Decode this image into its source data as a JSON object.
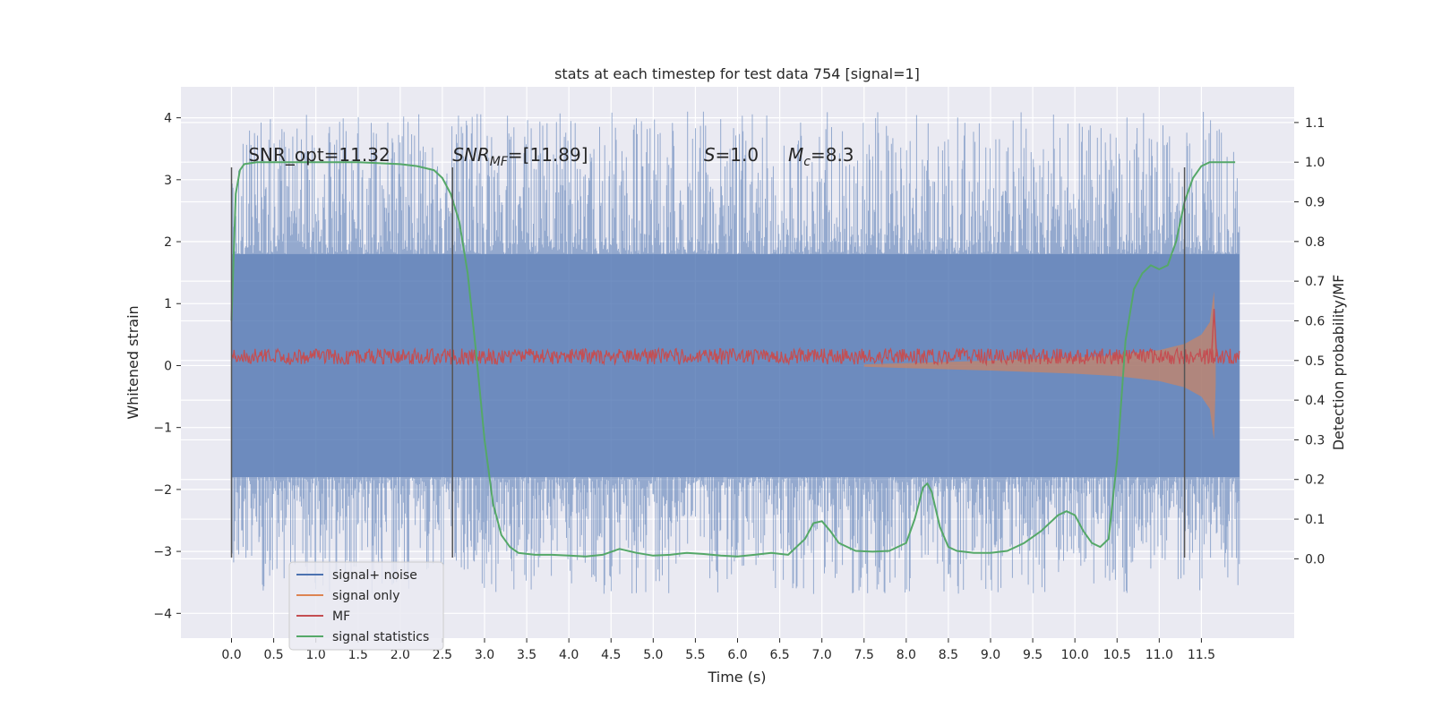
{
  "chart_data": {
    "type": "line",
    "title": "stats at each timestep for test data 754 [signal=1]",
    "xlabel": "Time (s)",
    "ylabel_left": "Whitened strain",
    "ylabel_right": "Detection probability/MF",
    "xlim": [
      -0.6,
      12.6
    ],
    "ylim_left": [
      -4.4,
      4.5
    ],
    "ylim_right": [
      -0.2,
      1.19
    ],
    "x_ticks": [
      0.0,
      0.5,
      1.0,
      1.5,
      2.0,
      2.5,
      3.0,
      3.5,
      4.0,
      4.5,
      5.0,
      5.5,
      6.0,
      6.5,
      7.0,
      7.5,
      8.0,
      8.5,
      9.0,
      9.5,
      10.0,
      10.5,
      11.0,
      11.5
    ],
    "x_tick_labels": [
      "0.0",
      "0.5",
      "1.0",
      "1.5",
      "2.0",
      "2.5",
      "3.0",
      "3.5",
      "4.0",
      "4.5",
      "5.0",
      "5.5",
      "6.0",
      "6.5",
      "7.0",
      "7.5",
      "8.0",
      "8.5",
      "9.0",
      "9.5",
      "10.0",
      "10.5",
      "11.0",
      "11.5"
    ],
    "y_left_ticks": [
      4,
      3,
      2,
      1,
      0,
      -1,
      -2,
      -3,
      -4
    ],
    "y_left_tick_labels": [
      "4",
      "3",
      "2",
      "1",
      "0",
      "−1",
      "−2",
      "−3",
      "−4"
    ],
    "y_right_ticks": [
      1.1,
      1.0,
      0.9,
      0.8,
      0.7,
      0.6,
      0.5,
      0.4,
      0.3,
      0.2,
      0.1,
      0.0
    ],
    "y_right_tick_labels": [
      "1.1",
      "1.0",
      "0.9",
      "0.8",
      "0.7",
      "0.6",
      "0.5",
      "0.4",
      "0.3",
      "0.2",
      "0.1",
      "0.0"
    ],
    "grid": true,
    "annotations": [
      {
        "text": "SNR_opt=11.32",
        "x": 0.2,
        "y": 3.3
      },
      {
        "text": "SNR_MF=[11.89]",
        "x": 2.62,
        "y": 3.3
      },
      {
        "text": "S=1.0",
        "x": 5.6,
        "y": 3.3
      },
      {
        "text": "M_c=8.3",
        "x": 6.6,
        "y": 3.3
      }
    ],
    "vertical_markers": [
      {
        "x": 0.0,
        "y_range": [
          -3.1,
          3.2
        ]
      },
      {
        "x": 2.62,
        "y_range": [
          -3.1,
          3.2
        ]
      },
      {
        "x": 11.3,
        "y_range": [
          -3.1,
          3.2
        ]
      }
    ],
    "legend": {
      "placement": "lower-left",
      "entries": [
        {
          "label": "signal+ noise",
          "color": "#4c72b0"
        },
        {
          "label": "signal only",
          "color": "#dd8452"
        },
        {
          "label": "MF",
          "color": "#c44e52"
        },
        {
          "label": "signal statistics",
          "color": "#55a868"
        }
      ]
    },
    "series": [
      {
        "name": "signal+ noise",
        "axis": "left",
        "color": "#4c72b0",
        "style": "dense-noise",
        "x_range": [
          0.0,
          11.95
        ],
        "core_band": [
          -1.8,
          1.8
        ],
        "peak_range": [
          -3.7,
          4.1
        ]
      },
      {
        "name": "signal only",
        "axis": "left",
        "color": "#dd8452",
        "style": "chirp-envelope",
        "x_range": [
          7.5,
          11.67
        ],
        "envelope": {
          "x": [
            7.5,
            8.0,
            9.0,
            10.0,
            10.5,
            11.0,
            11.3,
            11.5,
            11.6,
            11.65,
            11.67
          ],
          "amplitude": [
            0.02,
            0.04,
            0.08,
            0.13,
            0.17,
            0.25,
            0.35,
            0.5,
            0.7,
            1.2,
            0.3
          ]
        }
      },
      {
        "name": "MF",
        "axis": "right",
        "color": "#c44e52",
        "style": "noise-line",
        "x_range": [
          0.0,
          11.95
        ],
        "baseline": 0.51,
        "spread": 0.02,
        "peak": {
          "x": 11.65,
          "y": 0.63
        }
      },
      {
        "name": "signal statistics",
        "axis": "right",
        "color": "#55a868",
        "style": "line",
        "x": [
          0.0,
          0.05,
          0.1,
          0.15,
          0.3,
          0.5,
          1.0,
          1.5,
          2.0,
          2.2,
          2.4,
          2.5,
          2.6,
          2.7,
          2.8,
          2.9,
          3.0,
          3.1,
          3.2,
          3.3,
          3.4,
          3.6,
          3.8,
          4.0,
          4.2,
          4.4,
          4.6,
          4.8,
          5.0,
          5.2,
          5.4,
          5.6,
          5.8,
          6.0,
          6.2,
          6.4,
          6.6,
          6.8,
          6.9,
          7.0,
          7.1,
          7.2,
          7.4,
          7.6,
          7.8,
          8.0,
          8.1,
          8.2,
          8.25,
          8.3,
          8.4,
          8.5,
          8.6,
          8.8,
          9.0,
          9.2,
          9.4,
          9.6,
          9.8,
          9.9,
          10.0,
          10.1,
          10.2,
          10.3,
          10.4,
          10.5,
          10.6,
          10.7,
          10.8,
          10.9,
          11.0,
          11.1,
          11.2,
          11.3,
          11.4,
          11.5,
          11.6,
          11.7,
          11.9
        ],
        "y": [
          0.6,
          0.92,
          0.98,
          0.995,
          1.0,
          1.0,
          1.0,
          1.0,
          0.995,
          0.99,
          0.98,
          0.96,
          0.92,
          0.85,
          0.72,
          0.52,
          0.3,
          0.14,
          0.06,
          0.03,
          0.015,
          0.01,
          0.01,
          0.008,
          0.006,
          0.01,
          0.025,
          0.015,
          0.008,
          0.01,
          0.015,
          0.012,
          0.008,
          0.006,
          0.01,
          0.015,
          0.01,
          0.05,
          0.09,
          0.095,
          0.07,
          0.04,
          0.02,
          0.018,
          0.02,
          0.04,
          0.1,
          0.18,
          0.19,
          0.17,
          0.08,
          0.03,
          0.02,
          0.015,
          0.015,
          0.02,
          0.04,
          0.07,
          0.11,
          0.12,
          0.11,
          0.07,
          0.04,
          0.03,
          0.05,
          0.25,
          0.55,
          0.68,
          0.72,
          0.74,
          0.73,
          0.74,
          0.8,
          0.9,
          0.96,
          0.99,
          1.0,
          1.0,
          1.0
        ]
      }
    ]
  }
}
